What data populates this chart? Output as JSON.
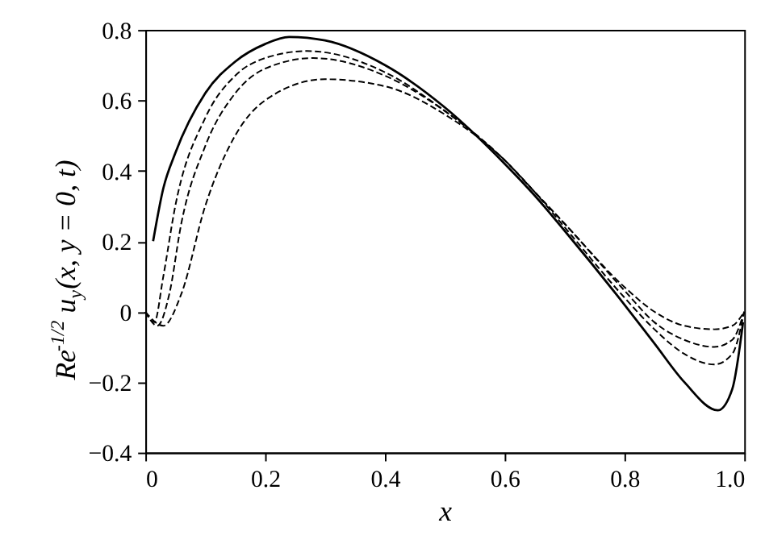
{
  "chart_data": {
    "type": "line",
    "xlabel": "x",
    "ylabel": "Re$^{-1/2}$u$_{y}$(x, y = 0, t)",
    "xlim": [
      0,
      1
    ],
    "ylim": [
      -0.4,
      0.8
    ],
    "xticks": [
      0,
      0.2,
      0.4,
      0.6,
      0.8,
      {
        "value": 1,
        "label": "1.0"
      }
    ],
    "yticks": [
      {
        "value": -0.4,
        "label": "−0.4"
      },
      {
        "value": -0.2,
        "label": "−0.2"
      },
      0,
      0.2,
      0.4,
      0.6,
      0.8
    ],
    "grid": false,
    "marker": "none",
    "series": [
      {
        "color": "#000000",
        "line_style": "solid",
        "x": [
          0.013,
          0.03,
          0.05,
          0.1,
          0.15,
          0.2,
          0.24,
          0.3,
          0.4,
          0.5,
          0.6,
          0.65,
          0.7,
          0.8,
          0.85,
          0.9,
          0.956,
          0.98,
          0.998
        ],
        "values": [
          0.2,
          0.35,
          0.45,
          0.62,
          0.71,
          0.76,
          0.78,
          0.77,
          0.7,
          0.58,
          0.42,
          0.33,
          0.23,
          0.02,
          -0.09,
          -0.2,
          -0.28,
          -0.22,
          -0.03
        ]
      },
      {
        "color": "#000000",
        "line_style": "dashed",
        "x": [
          0,
          0.015,
          0.03,
          0.05,
          0.1,
          0.15,
          0.2,
          0.27,
          0.4,
          0.5,
          0.6,
          0.65,
          0.7,
          0.8,
          0.85,
          0.9,
          0.95,
          0.98,
          1.0
        ],
        "values": [
          0,
          -0.03,
          0.1,
          0.3,
          0.55,
          0.67,
          0.72,
          0.74,
          0.68,
          0.57,
          0.43,
          0.34,
          0.25,
          0.07,
          0.0,
          -0.04,
          -0.05,
          -0.04,
          0
        ]
      },
      {
        "color": "#000000",
        "line_style": "dashed",
        "x": [
          0,
          0.02,
          0.04,
          0.06,
          0.1,
          0.15,
          0.2,
          0.28,
          0.4,
          0.5,
          0.6,
          0.65,
          0.7,
          0.8,
          0.85,
          0.9,
          0.95,
          0.98,
          1.0
        ],
        "values": [
          0,
          -0.04,
          0.05,
          0.25,
          0.47,
          0.62,
          0.69,
          0.72,
          0.67,
          0.57,
          0.43,
          0.34,
          0.25,
          0.06,
          -0.03,
          -0.08,
          -0.1,
          -0.08,
          0
        ]
      },
      {
        "color": "#000000",
        "line_style": "dashed",
        "x": [
          0,
          0.03,
          0.06,
          0.1,
          0.15,
          0.2,
          0.3,
          0.4,
          0.5,
          0.6,
          0.65,
          0.7,
          0.8,
          0.85,
          0.9,
          0.95,
          0.98,
          1.0
        ],
        "values": [
          0,
          -0.04,
          0.05,
          0.3,
          0.5,
          0.6,
          0.66,
          0.64,
          0.56,
          0.43,
          0.34,
          0.24,
          0.04,
          -0.05,
          -0.12,
          -0.15,
          -0.12,
          0
        ]
      }
    ]
  }
}
